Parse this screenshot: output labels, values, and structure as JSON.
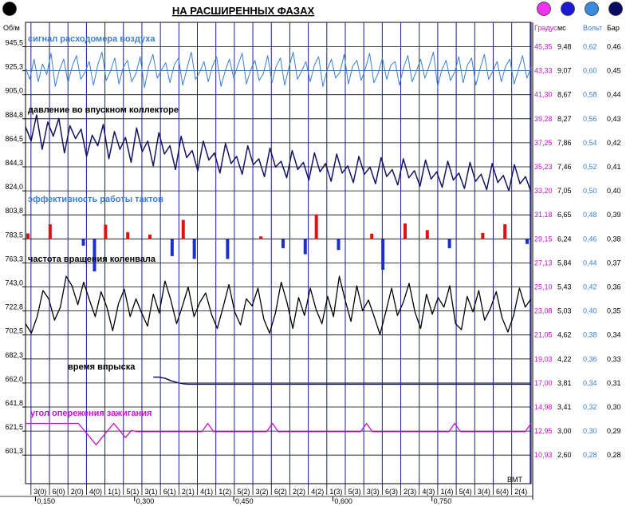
{
  "chart_data": {
    "type": "line",
    "title": "НА РАСШИРЕННЫХ ФАЗАХ",
    "colors": {
      "background": "#ffffff",
      "grid": "#000000",
      "cylinder_line": "#1a1aa0",
      "air_flow": "#3a7fd0",
      "manifold_pressure": "#141462",
      "efficiency_pos": "#e01010",
      "efficiency_neg": "#1a2fd0",
      "rpm": "#000000",
      "injection": "#141462",
      "ignition": "#cc11cc",
      "scale_left": "#000000",
      "scale_degree": "#cc11cc",
      "scale_ms": "#000000",
      "scale_volt": "#3a7fd0",
      "scale_bar": "#000000"
    },
    "indicators": [
      {
        "color": "#000000",
        "icon": "circle-indicator"
      },
      {
        "color": "#ee33ee",
        "icon": "circle-indicator"
      },
      {
        "color": "#1a1ad0",
        "icon": "circle-indicator"
      },
      {
        "color": "#3a8ae0",
        "icon": "circle-indicator"
      },
      {
        "color": "#0a0a60",
        "icon": "circle-indicator"
      }
    ],
    "axes": {
      "left_unit": "Об/м",
      "left_ticks": [
        "945,5",
        "925,3",
        "905,0",
        "884,8",
        "864,5",
        "844,3",
        "824,0",
        "803,8",
        "783,5",
        "763,3",
        "743,0",
        "722,8",
        "702,5",
        "682,3",
        "662,0",
        "641,8",
        "621,5",
        "601,3"
      ],
      "degree_unit": "Градус",
      "degree_ticks": [
        "45,35",
        "43,33",
        "41,30",
        "39,28",
        "37,25",
        "35,23",
        "33,20",
        "31,18",
        "29,15",
        "27,13",
        "25,10",
        "23,08",
        "21,05",
        "19,03",
        "17,00",
        "14,98",
        "12,95",
        "10,93"
      ],
      "ms_unit": "мс",
      "ms_ticks": [
        "9,48",
        "9,07",
        "8,67",
        "8,27",
        "7,86",
        "7,46",
        "7,05",
        "6,65",
        "6,24",
        "5,84",
        "5,43",
        "5,03",
        "4,62",
        "4,22",
        "3,81",
        "3,41",
        "3,00",
        "2,60"
      ],
      "volt_unit": "Вольт",
      "volt_ticks": [
        "0,62",
        "0,60",
        "0,58",
        "0,56",
        "0,54",
        "0,52",
        "0,50",
        "0,48",
        "0,46",
        "0,44",
        "0,42",
        "0,40",
        "0,38",
        "0,36",
        "0,34",
        "0,32",
        "0,30",
        "0,28"
      ],
      "bar_unit": "Бар",
      "bar_ticks": [
        "0,46",
        "0,45",
        "0,44",
        "0,43",
        "0,42",
        "0,41",
        "0,40",
        "0,39",
        "0,38",
        "0,37",
        "0,36",
        "0,35",
        "0,34",
        "0,33",
        "0,31",
        "0,30",
        "0,29",
        "0,28"
      ],
      "x_label": "ВМТ",
      "x_time_ticks": [
        {
          "t": 0.15,
          "label": "0,150"
        },
        {
          "t": 0.3,
          "label": "0,300"
        },
        {
          "t": 0.45,
          "label": "0,450"
        },
        {
          "t": 0.6,
          "label": "0,600"
        },
        {
          "t": 0.75,
          "label": "0,750"
        }
      ],
      "x_range": [
        0.135,
        0.9
      ],
      "left_range": [
        591.2,
        955.6
      ]
    },
    "cycle_labels": [
      "3(0)",
      "6(0)",
      "2(0)",
      "4(0)",
      "1(1)",
      "5(1)",
      "3(1)",
      "6(1)",
      "2(1)",
      "4(1)",
      "1(2)",
      "5(2)",
      "3(2)",
      "6(2)",
      "2(2)",
      "4(2)",
      "1(3)",
      "5(3)",
      "3(3)",
      "6(3)",
      "2(3)",
      "4(3)",
      "1(4)",
      "5(4)",
      "3(4)",
      "6(4)",
      "2(4)"
    ],
    "series": [
      {
        "name": "сигнал расходомера воздуха",
        "kind": "air_flow",
        "base": 925.3,
        "values": [
          928,
          918,
          935,
          916,
          931,
          922,
          940,
          912,
          926,
          935,
          915,
          929,
          938,
          918,
          924,
          933,
          913,
          930,
          941,
          917,
          925,
          936,
          914,
          928,
          934,
          916,
          923,
          937,
          911,
          929,
          939,
          919,
          926,
          932,
          915,
          930,
          936,
          913,
          927,
          941,
          918,
          924,
          933,
          916,
          929,
          937,
          912,
          925,
          935,
          919,
          930,
          940,
          914,
          926,
          934,
          917,
          923,
          938,
          915,
          929,
          936,
          913,
          928,
          941,
          918,
          925,
          933,
          916,
          930,
          937,
          912,
          926,
          935,
          919,
          924,
          939,
          914,
          929,
          934,
          917,
          927,
          940,
          915,
          923,
          936,
          918,
          930,
          933,
          913,
          928,
          938,
          916,
          925,
          935,
          919,
          929,
          941,
          912,
          926,
          934,
          917,
          924,
          937,
          915,
          930,
          936,
          913,
          927,
          939,
          918,
          925,
          933,
          916,
          929,
          935,
          914,
          926,
          938,
          919,
          928
        ]
      },
      {
        "name": "давление во впускном коллекторе",
        "kind": "manifold_pressure",
        "values": [
          878,
          866,
          888,
          859,
          882,
          870,
          885,
          856,
          879,
          868,
          876,
          853,
          871,
          862,
          880,
          851,
          874,
          859,
          869,
          848,
          877,
          857,
          866,
          845,
          873,
          855,
          862,
          842,
          870,
          852,
          858,
          841,
          866,
          850,
          856,
          839,
          864,
          847,
          853,
          838,
          862,
          846,
          851,
          836,
          860,
          844,
          849,
          835,
          858,
          842,
          848,
          833,
          856,
          840,
          847,
          832,
          855,
          839,
          845,
          831,
          853,
          838,
          844,
          830,
          852,
          836,
          842,
          829,
          851,
          835,
          841,
          828,
          850,
          834,
          840,
          827,
          849,
          833,
          839,
          826,
          848,
          832,
          838,
          825,
          847,
          831,
          837,
          824,
          846,
          830,
          836,
          823
        ]
      },
      {
        "name": "эффективность работы тактов",
        "kind": "efficiency",
        "base": 783.5,
        "values": [
          4.6,
          0.0,
          12.3,
          0.0,
          0.0,
          -5.7,
          -27.4,
          12.0,
          0.0,
          5.7,
          0.0,
          3.6,
          0.0,
          -14.5,
          16.0,
          -16.8,
          0.0,
          0.0,
          -16.9,
          0.0,
          0.0,
          2.1,
          0.0,
          -7.8,
          0.0,
          -12.9,
          20.7,
          0.0,
          -9.3,
          0.0,
          0.0,
          4.4,
          -26.0,
          0.0,
          13.0,
          0.0,
          7.4,
          0.0,
          -7.8,
          0.0,
          0.0,
          5.0,
          0.0,
          12.4,
          0.0,
          -4.3
        ]
      },
      {
        "name": "частота вращения коленвала",
        "kind": "rpm",
        "values": [
          712,
          704,
          718,
          740,
          733,
          715,
          726,
          752,
          744,
          728,
          747,
          732,
          718,
          739,
          726,
          706,
          729,
          741,
          718,
          733,
          721,
          710,
          737,
          721,
          748,
          732,
          712,
          727,
          743,
          718,
          730,
          738,
          720,
          708,
          726,
          745,
          722,
          711,
          733,
          727,
          742,
          716,
          704,
          721,
          747,
          730,
          708,
          734,
          719,
          742,
          724,
          712,
          735,
          718,
          752,
          732,
          714,
          744,
          723,
          732,
          718,
          703,
          722,
          742,
          719,
          730,
          746,
          722,
          708,
          737,
          720,
          734,
          726,
          744,
          712,
          707,
          735,
          722,
          740,
          715,
          725,
          739,
          717,
          705,
          719,
          742,
          726,
          733
        ]
      },
      {
        "name": "время впрыска",
        "kind": "injection",
        "values": [
          null,
          null,
          null,
          null,
          null,
          null,
          null,
          null,
          null,
          null,
          null,
          null,
          null,
          null,
          null,
          null,
          null,
          null,
          null,
          null,
          null,
          null,
          667.0,
          667.0,
          666.0,
          664.0,
          662.5,
          661.5,
          661.0,
          661.0,
          661.0,
          661.0,
          661.0,
          661.0,
          661.0,
          661.0,
          661.0,
          661.0,
          661.0,
          661.0,
          661.0,
          661.0,
          661.0,
          661.0,
          661.0,
          661.0,
          661.0,
          661.0,
          661.0,
          661.0,
          661.0,
          661.0,
          661.0,
          661.0,
          661.0,
          661.0,
          661.0,
          661.0,
          661.0,
          661.0,
          661.0,
          661.0,
          661.0,
          661.0,
          661.0,
          661.0,
          661.0,
          661.0,
          661.0,
          661.0,
          661.0,
          661.0,
          661.0,
          661.0,
          661.0,
          661.0,
          661.0,
          661.0,
          661.0,
          661.0,
          661.0,
          661.0,
          661.0,
          661.0,
          661.0,
          661.0,
          661.0,
          661.0
        ]
      },
      {
        "name": "угол опережения зажигания",
        "kind": "ignition",
        "values": [
          628,
          628,
          628,
          628,
          628,
          628,
          628,
          628,
          628,
          628,
          622,
          616,
          610,
          616,
          622,
          628,
          622,
          616,
          622,
          621,
          621,
          621,
          621,
          621,
          621,
          621,
          621,
          621,
          621,
          621,
          621,
          628,
          621,
          621,
          621,
          621,
          621,
          621,
          621,
          621,
          621,
          621,
          628,
          621,
          621,
          621,
          621,
          621,
          621,
          621,
          621,
          621,
          621,
          621,
          621,
          621,
          621,
          621,
          628,
          621,
          621,
          621,
          621,
          621,
          621,
          621,
          621,
          621,
          621,
          621,
          621,
          621,
          621,
          628,
          621,
          621,
          621,
          621,
          621,
          621,
          621,
          621,
          621,
          621,
          621,
          621,
          628
        ]
      }
    ]
  }
}
